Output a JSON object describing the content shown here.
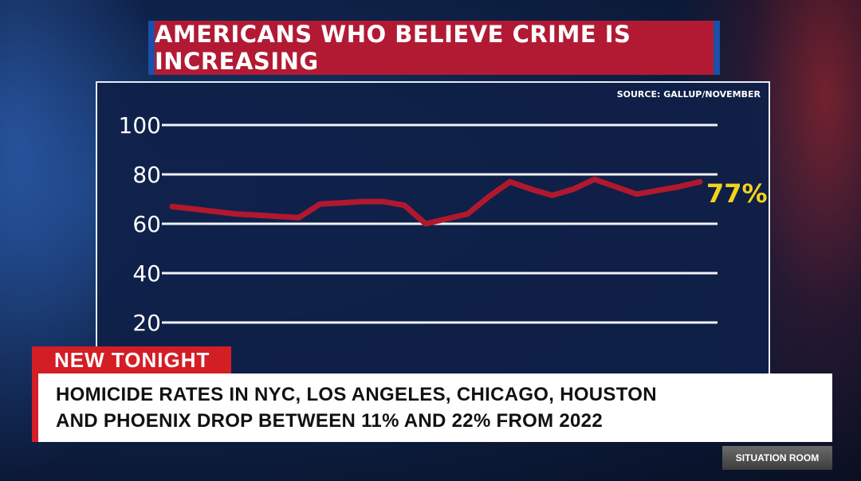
{
  "title": "AMERICANS WHO BELIEVE CRIME IS INCREASING",
  "source": "SOURCE: GALLUP/NOVEMBER",
  "chart_data": {
    "type": "line",
    "title": "AMERICANS WHO BELIEVE CRIME IS INCREASING",
    "xlabel": "",
    "ylabel": "",
    "ylim": [
      0,
      100
    ],
    "yticks": [
      20,
      40,
      60,
      80,
      100
    ],
    "grid": true,
    "series": [
      {
        "values": [
          67,
          66,
          65,
          64,
          63.5,
          63,
          62.5,
          68,
          68.5,
          69,
          69,
          67.5,
          60,
          62,
          64,
          71,
          77,
          74,
          71.5,
          74,
          78,
          75,
          72,
          73.5,
          75,
          77
        ],
        "color": "#b0182e"
      }
    ],
    "end_label": "77%"
  },
  "lower_third": {
    "tag": "NEW TONIGHT",
    "line1": "HOMICIDE RATES IN NYC, LOS ANGELES, CHICAGO, HOUSTON",
    "line2": "AND PHOENIX DROP BETWEEN 11% AND 22% FROM 2022"
  },
  "show_name": "SITUATION ROOM",
  "colors": {
    "banner": "#b21a34",
    "line": "#b0182e",
    "highlight": "#f2d21e",
    "tag": "#d31e26"
  }
}
